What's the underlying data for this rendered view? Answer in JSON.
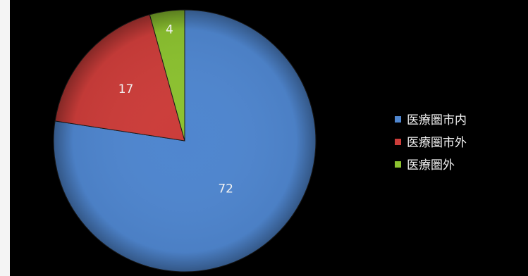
{
  "chart_data": {
    "type": "pie",
    "title": "",
    "categories": [
      "医療圏市内",
      "医療圏市外",
      "医療圏外"
    ],
    "values": [
      72,
      17,
      4
    ],
    "colors": [
      "#4f86cf",
      "#cc3d3a",
      "#8cc230"
    ],
    "legend_position": "right",
    "data_labels": true
  }
}
